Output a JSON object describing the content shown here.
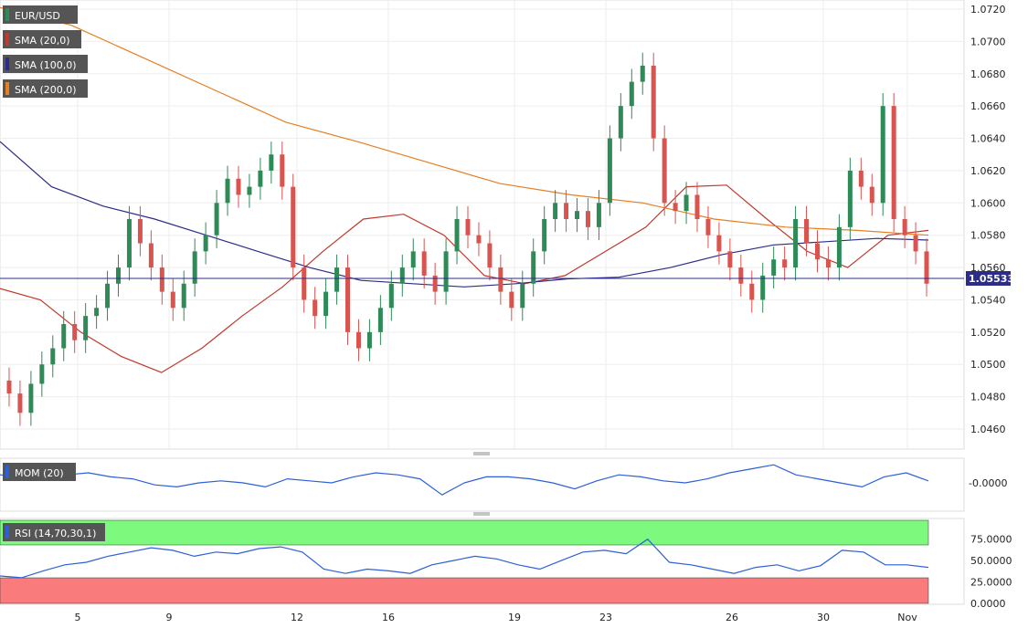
{
  "chart_data": [
    {
      "type": "candlestick",
      "symbol": "EUR/USD",
      "ylim": [
        1.0446,
        1.0726
      ],
      "y_ticks": [
        "1.0720",
        "1.0700",
        "1.0680",
        "1.0660",
        "1.0640",
        "1.0620",
        "1.0600",
        "1.0580",
        "1.0560",
        "1.0540",
        "1.0520",
        "1.0500",
        "1.0480",
        "1.0460"
      ],
      "x_ticks": [
        "5",
        "9",
        "12",
        "16",
        "19",
        "23",
        "26",
        "30",
        "Nov"
      ],
      "current_price": "1.05533",
      "grid": true,
      "legend": [
        {
          "label": "EUR/USD",
          "color": "#555555"
        },
        {
          "label": "SMA (20,0)",
          "color": "#c0392b"
        },
        {
          "label": "SMA (100,0)",
          "color": "#2c2c8a"
        },
        {
          "label": "SMA (200,0)",
          "color": "#e67e22"
        }
      ],
      "colors": {
        "up": "#2e8b57",
        "down": "#d9534f",
        "sma20": "#c0392b",
        "sma100": "#2c2c8a",
        "sma200": "#e67e22",
        "price_line": "#2c2c8a"
      },
      "series": [
        {
          "name": "SMA (20,0)",
          "values": [
            1.0547,
            1.054,
            1.052,
            1.0505,
            1.0495,
            1.051,
            1.053,
            1.0548,
            1.057,
            1.059,
            1.0593,
            1.058,
            1.0555,
            1.055,
            1.0555,
            1.057,
            1.0585,
            1.061,
            1.0611,
            1.059,
            1.057,
            1.056,
            1.058,
            1.0583
          ]
        },
        {
          "name": "SMA (100,0)",
          "values": [
            1.0638,
            1.061,
            1.0598,
            1.059,
            1.058,
            1.057,
            1.056,
            1.0552,
            1.055,
            1.0548,
            1.055,
            1.0553,
            1.0554,
            1.056,
            1.0568,
            1.0574,
            1.0576,
            1.0578,
            1.0577
          ]
        },
        {
          "name": "SMA (200,0)",
          "values": [
            1.0721,
            1.071,
            1.069,
            1.067,
            1.065,
            1.0638,
            1.0625,
            1.0612,
            1.0605,
            1.06,
            1.059,
            1.0585,
            1.0583,
            1.058
          ]
        }
      ]
    },
    {
      "type": "line",
      "title": "MOM (20)",
      "y_ticks": [
        "-0.0000"
      ],
      "series": [
        {
          "name": "MOM (20)",
          "values": [
            0.4,
            0.3,
            0.35,
            0.4,
            0.5,
            0.3,
            0.2,
            -0.1,
            -0.2,
            0.0,
            0.1,
            0.0,
            -0.2,
            0.2,
            0.1,
            0.0,
            0.3,
            0.5,
            0.4,
            0.2,
            -0.6,
            0.0,
            0.3,
            0.3,
            0.2,
            0.0,
            -0.3,
            0.1,
            0.4,
            0.3,
            0.1,
            0.0,
            0.2,
            0.5,
            0.7,
            0.9,
            0.4,
            0.2,
            0.0,
            -0.2,
            0.3,
            0.5,
            0.1
          ]
        }
      ]
    },
    {
      "type": "line",
      "title": "RSI (14,70,30,1)",
      "y_ticks": [
        "75.0000",
        "50.0000",
        "25.0000",
        "0.0000"
      ],
      "bands": {
        "overbought": 70,
        "oversold": 30
      },
      "series": [
        {
          "name": "RSI (14,70,30,1)",
          "values": [
            32,
            30,
            38,
            45,
            48,
            55,
            60,
            65,
            62,
            55,
            60,
            58,
            64,
            66,
            60,
            40,
            35,
            40,
            38,
            35,
            45,
            50,
            55,
            52,
            45,
            40,
            50,
            60,
            62,
            58,
            75,
            48,
            45,
            40,
            35,
            42,
            45,
            38,
            44,
            62,
            60,
            45,
            45,
            42
          ]
        }
      ]
    }
  ]
}
